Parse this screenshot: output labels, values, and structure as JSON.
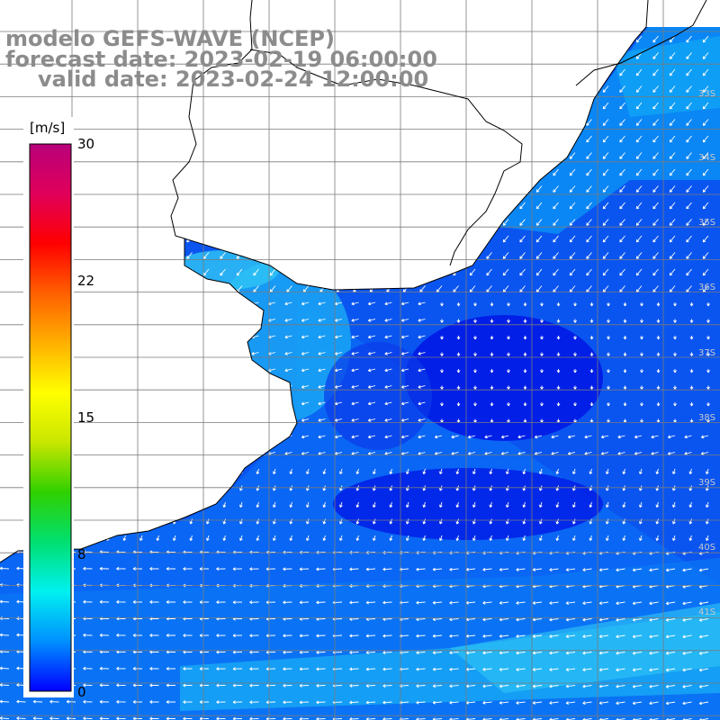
{
  "title": {
    "line1": "modelo GEFS-WAVE (NCEP)",
    "line2": "forecast date: 2023-02-19 06:00:00",
    "line3": "valid date: 2023-02-24 12:00:00"
  },
  "colorbar": {
    "unit": "[m/s]",
    "ticks": [
      "30",
      "22",
      "15",
      "8",
      "0"
    ],
    "stops": [
      "#0000ff",
      "#0090ff",
      "#00f0f0",
      "#00e070",
      "#30d000",
      "#c8e600",
      "#ffff00",
      "#ffb000",
      "#ff6000",
      "#ff0000",
      "#e0005a",
      "#b8007a"
    ]
  },
  "lat_labels": [
    "33S",
    "34S",
    "35S",
    "36S",
    "37S",
    "38S",
    "39S",
    "40S",
    "41S"
  ],
  "colors": {
    "land": "#ffffff",
    "grid": "#7a7a7a",
    "coast": "#000000",
    "arrow": "#ffffff"
  }
}
